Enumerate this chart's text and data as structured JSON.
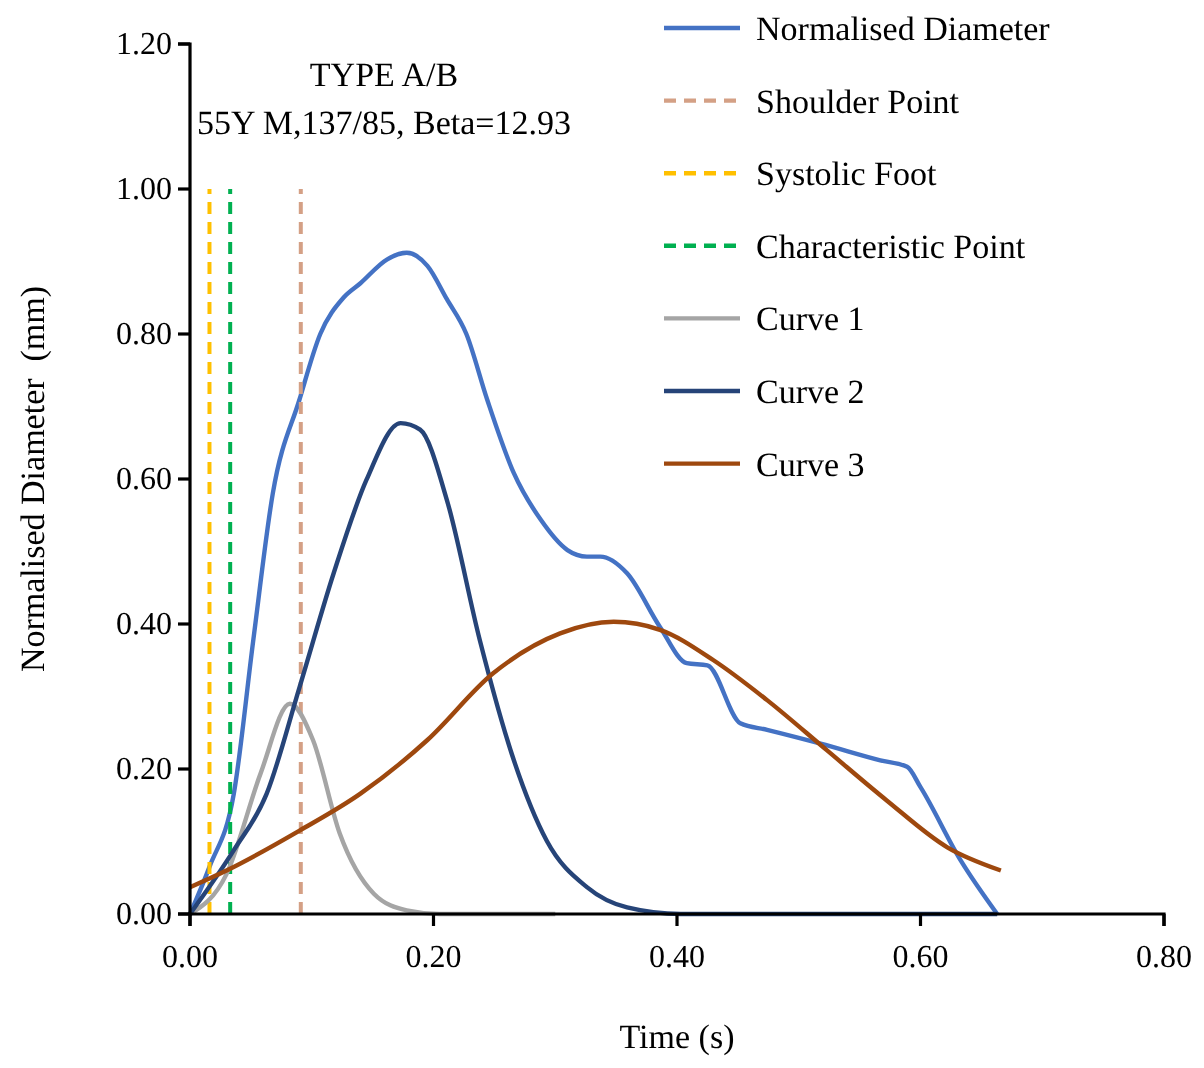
{
  "chart_data": {
    "type": "line",
    "xlabel": "Time (s)",
    "ylabel": "Normalised Diameter  (mm)",
    "annotations": [
      "TYPE A/B",
      "55Y M,137/85, Beta=12.93"
    ],
    "xlim": [
      0,
      0.8
    ],
    "xticks": [
      {
        "value": 0,
        "label": "0.00"
      },
      {
        "value": 0.2,
        "label": "0.20"
      },
      {
        "value": 0.4,
        "label": "0.40"
      },
      {
        "value": 0.6,
        "label": "0.60"
      },
      {
        "value": 0.8,
        "label": "0.80"
      }
    ],
    "ylim": [
      0,
      1.2
    ],
    "yticks": [
      {
        "value": 0,
        "label": "0.00"
      },
      {
        "value": 0.2,
        "label": "0.20"
      },
      {
        "value": 0.4,
        "label": "0.40"
      },
      {
        "value": 0.6,
        "label": "0.60"
      },
      {
        "value": 0.8,
        "label": "0.80"
      },
      {
        "value": 1,
        "label": "1.00"
      },
      {
        "value": 1.2,
        "label": "1.20"
      }
    ],
    "grid": false,
    "legend": "top right",
    "series": [
      {
        "name": "Normalised Diameter",
        "color": "#4472c4",
        "line_style": "solid",
        "x": [
          0,
          0.016,
          0.036,
          0.052,
          0.068,
          0.09,
          0.107,
          0.126,
          0.14,
          0.162,
          0.178,
          0.195,
          0.211,
          0.227,
          0.244,
          0.266,
          0.288,
          0.31,
          0.326,
          0.337,
          0.359,
          0.386,
          0.408,
          0.425,
          0.452,
          0.474,
          0.518,
          0.567,
          0.589,
          0.6,
          0.633,
          0.663
        ],
        "values": [
          0,
          0.065,
          0.166,
          0.378,
          0.58,
          0.71,
          0.8,
          0.85,
          0.87,
          0.903,
          0.912,
          0.894,
          0.848,
          0.8,
          0.71,
          0.608,
          0.544,
          0.502,
          0.493,
          0.493,
          0.47,
          0.396,
          0.346,
          0.343,
          0.263,
          0.254,
          0.235,
          0.212,
          0.203,
          0.175,
          0.074,
          0
        ]
      },
      {
        "name": "Shoulder Point",
        "color": "#d4a085",
        "line_style": "dashed",
        "x": [
          0.091,
          0.091
        ],
        "values": [
          0,
          1
        ]
      },
      {
        "name": "Systolic Foot",
        "color": "#ffc000",
        "line_style": "dashed",
        "x": [
          0.016,
          0.016
        ],
        "values": [
          0,
          1
        ]
      },
      {
        "name": "Characteristic Point",
        "color": "#00b050",
        "line_style": "dashed",
        "x": [
          0.033,
          0.033
        ],
        "values": [
          0,
          1
        ]
      },
      {
        "name": "Curve 1",
        "color": "#a5a5a5",
        "line_style": "solid",
        "x": [
          0,
          0.03,
          0.058,
          0.082,
          0.101,
          0.123,
          0.151,
          0.178,
          0.205,
          0.3
        ],
        "values": [
          0,
          0.055,
          0.194,
          0.29,
          0.24,
          0.111,
          0.028,
          0.005,
          0,
          0
        ]
      },
      {
        "name": "Curve 2",
        "color": "#264478",
        "line_style": "solid",
        "x": [
          0,
          0.036,
          0.063,
          0.09,
          0.118,
          0.145,
          0.173,
          0.189,
          0.211,
          0.238,
          0.266,
          0.293,
          0.326,
          0.359,
          0.403,
          0.5,
          0.663
        ],
        "values": [
          0,
          0.088,
          0.166,
          0.313,
          0.47,
          0.599,
          0.677,
          0.668,
          0.571,
          0.378,
          0.212,
          0.101,
          0.037,
          0.009,
          0,
          0,
          0
        ]
      },
      {
        "name": "Curve 3",
        "color": "#9e480e",
        "line_style": "solid",
        "x": [
          0,
          0.03,
          0.09,
          0.14,
          0.195,
          0.249,
          0.304,
          0.348,
          0.386,
          0.43,
          0.474,
          0.523,
          0.572,
          0.622,
          0.666
        ],
        "values": [
          0.037,
          0.06,
          0.115,
          0.166,
          0.24,
          0.332,
          0.387,
          0.403,
          0.392,
          0.35,
          0.295,
          0.226,
          0.157,
          0.092,
          0.06
        ]
      }
    ]
  }
}
